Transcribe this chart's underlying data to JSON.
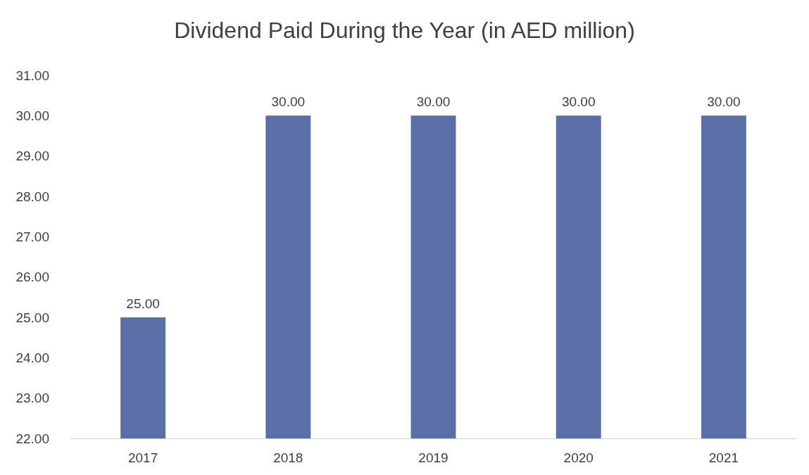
{
  "chart_data": {
    "type": "bar",
    "title": "Dividend Paid During the Year (in AED million)",
    "categories": [
      "2017",
      "2018",
      "2019",
      "2020",
      "2021"
    ],
    "values": [
      25,
      30,
      30,
      30,
      30
    ],
    "value_labels": [
      "25.00",
      "30.00",
      "30.00",
      "30.00",
      "30.00"
    ],
    "color": "#5a6fa8",
    "ylim": [
      22,
      31
    ],
    "yticks": [
      {
        "value": 22,
        "label": "22.00"
      },
      {
        "value": 23,
        "label": "23.00"
      },
      {
        "value": 24,
        "label": "24.00"
      },
      {
        "value": 25,
        "label": "25.00"
      },
      {
        "value": 26,
        "label": "26.00"
      },
      {
        "value": 27,
        "label": "27.00"
      },
      {
        "value": 28,
        "label": "28.00"
      },
      {
        "value": 29,
        "label": "29.00"
      },
      {
        "value": 30,
        "label": "30.00"
      },
      {
        "value": 31,
        "label": "31.00"
      }
    ],
    "grid": false
  }
}
